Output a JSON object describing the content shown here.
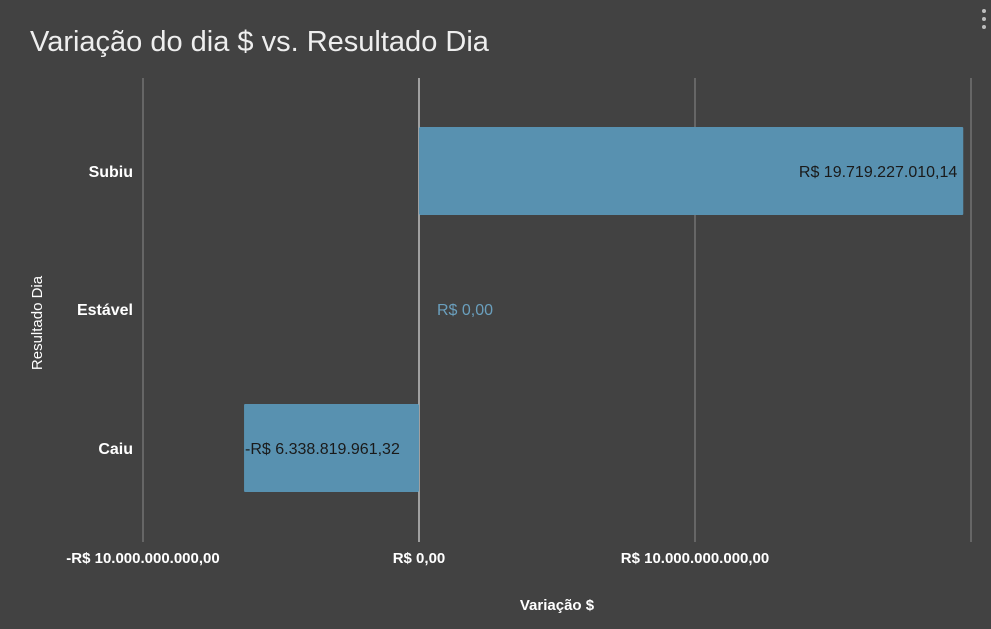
{
  "chart_data": {
    "type": "bar",
    "orientation": "horizontal",
    "title": "Variação do dia $ vs. Resultado Dia",
    "xlabel": "Variação $",
    "ylabel": "Resultado Dia",
    "categories": [
      "Subiu",
      "Estável",
      "Caiu"
    ],
    "values": [
      19719227010.14,
      0,
      -6338819961.32
    ],
    "data_labels": [
      "R$ 19.719.227.010,14",
      "R$ 0,00",
      "-R$ 6.338.819.961,32"
    ],
    "xlim": [
      -10000000000,
      20000000000
    ],
    "x_ticks": [
      {
        "value": -10000000000,
        "label": "-R$ 10.000.000.000,00"
      },
      {
        "value": 0,
        "label": "R$ 0,00"
      },
      {
        "value": 10000000000,
        "label": "R$ 10.000.000.000,00"
      },
      {
        "value": 20000000000,
        "label": ""
      }
    ],
    "grid": true,
    "legend": "none",
    "colors": {
      "background": "#424242",
      "bar": "#5891b0",
      "gridline": "#8a8a8a",
      "zero_line": "#ffffff",
      "text": "#ffffff",
      "data_label_inside": "#1a1a1a",
      "data_label_outside": "#6a9fbd"
    }
  },
  "menu": {
    "icon": "more-vert-icon"
  }
}
